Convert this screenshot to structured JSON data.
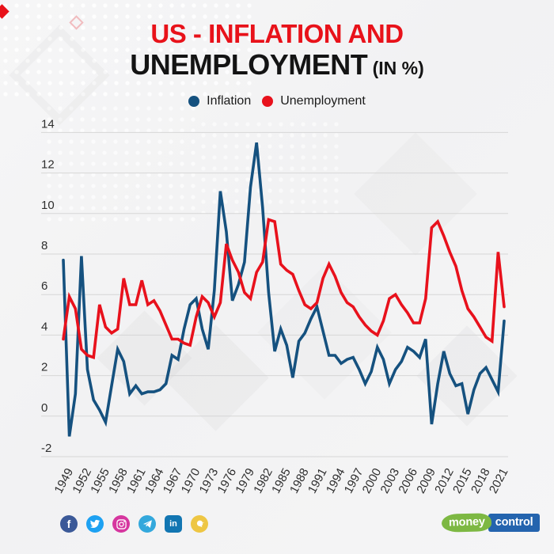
{
  "header": {
    "title_line1": "US - INFLATION AND",
    "title_line2": "UNEMPLOYMENT",
    "title_suffix": " (IN %)"
  },
  "legend": {
    "inflation_label": "Inflation",
    "unemployment_label": "Unemployment"
  },
  "colors": {
    "inflation": "#15517f",
    "unemployment": "#e8111c",
    "title_red": "#e8121a",
    "grid": "#d6d6d6",
    "tick_text": "#2e2e2e"
  },
  "chart_data": {
    "type": "line",
    "title": "US - Inflation and Unemployment (in %)",
    "xlabel": "",
    "ylabel": "",
    "x": [
      1948,
      1949,
      1950,
      1951,
      1952,
      1953,
      1954,
      1955,
      1956,
      1957,
      1958,
      1959,
      1960,
      1961,
      1962,
      1963,
      1964,
      1965,
      1966,
      1967,
      1968,
      1969,
      1970,
      1971,
      1972,
      1973,
      1974,
      1975,
      1976,
      1977,
      1978,
      1979,
      1980,
      1981,
      1982,
      1983,
      1984,
      1985,
      1986,
      1987,
      1988,
      1989,
      1990,
      1991,
      1992,
      1993,
      1994,
      1995,
      1996,
      1997,
      1998,
      1999,
      2000,
      2001,
      2002,
      2003,
      2004,
      2005,
      2006,
      2007,
      2008,
      2009,
      2010,
      2011,
      2012,
      2013,
      2014,
      2015,
      2016,
      2017,
      2018,
      2019,
      2020,
      2021
    ],
    "series": [
      {
        "name": "Inflation",
        "color": "#15517f",
        "values": [
          7.7,
          -1.0,
          1.1,
          7.9,
          2.3,
          0.8,
          0.3,
          -0.3,
          1.5,
          3.3,
          2.7,
          1.1,
          1.5,
          1.1,
          1.2,
          1.2,
          1.3,
          1.6,
          3.0,
          2.8,
          4.3,
          5.5,
          5.8,
          4.3,
          3.3,
          6.2,
          11.1,
          9.1,
          5.7,
          6.5,
          7.6,
          11.3,
          13.5,
          10.3,
          6.1,
          3.2,
          4.3,
          3.5,
          1.9,
          3.7,
          4.1,
          4.8,
          5.4,
          4.2,
          3.0,
          3.0,
          2.6,
          2.8,
          2.9,
          2.3,
          1.6,
          2.2,
          3.4,
          2.8,
          1.6,
          2.3,
          2.7,
          3.4,
          3.2,
          2.9,
          3.8,
          -0.4,
          1.6,
          3.2,
          2.1,
          1.5,
          1.6,
          0.1,
          1.3,
          2.1,
          2.4,
          1.8,
          1.2,
          4.7
        ]
      },
      {
        "name": "Unemployment",
        "color": "#e8111c",
        "values": [
          3.8,
          5.9,
          5.3,
          3.3,
          3.0,
          2.9,
          5.5,
          4.4,
          4.1,
          4.3,
          6.8,
          5.5,
          5.5,
          6.7,
          5.5,
          5.7,
          5.2,
          4.5,
          3.8,
          3.8,
          3.6,
          3.5,
          4.9,
          5.9,
          5.6,
          4.9,
          5.6,
          8.5,
          7.7,
          7.1,
          6.1,
          5.8,
          7.1,
          7.6,
          9.7,
          9.6,
          7.5,
          7.2,
          7.0,
          6.2,
          5.5,
          5.3,
          5.6,
          6.8,
          7.5,
          6.9,
          6.1,
          5.6,
          5.4,
          4.9,
          4.5,
          4.2,
          4.0,
          4.7,
          5.8,
          6.0,
          5.5,
          5.1,
          4.6,
          4.6,
          5.8,
          9.3,
          9.6,
          8.9,
          8.1,
          7.4,
          6.2,
          5.3,
          4.9,
          4.4,
          3.9,
          3.7,
          8.1,
          5.4
        ]
      }
    ],
    "xtick_labels": [
      "1949",
      "1952",
      "1955",
      "1958",
      "1961",
      "1964",
      "1967",
      "1970",
      "1973",
      "1976",
      "1979",
      "1982",
      "1985",
      "1988",
      "1991",
      "1994",
      "1997",
      "2000",
      "2003",
      "2006",
      "2009",
      "2012",
      "2015",
      "2018",
      "2021"
    ],
    "ytick_values": [
      -2,
      0,
      2,
      4,
      6,
      8,
      10,
      12,
      14
    ],
    "ylim": [
      -2,
      14
    ],
    "grid": "horizontal",
    "legend_position": "top-center"
  },
  "footer": {
    "social": [
      {
        "icon": "facebook-icon",
        "color": "#3b5998",
        "shape": "circle"
      },
      {
        "icon": "twitter-icon",
        "color": "#1da1f2",
        "shape": "circle"
      },
      {
        "icon": "instagram-icon",
        "color": "#d6369f",
        "shape": "circle"
      },
      {
        "icon": "telegram-icon",
        "color": "#33a8dc",
        "shape": "circle"
      },
      {
        "icon": "linkedin-icon",
        "color": "#1276b2",
        "shape": "square"
      },
      {
        "icon": "koo-icon",
        "color": "#eec643",
        "shape": "circle"
      }
    ],
    "logo": {
      "part1": "money",
      "part2": "control"
    }
  }
}
